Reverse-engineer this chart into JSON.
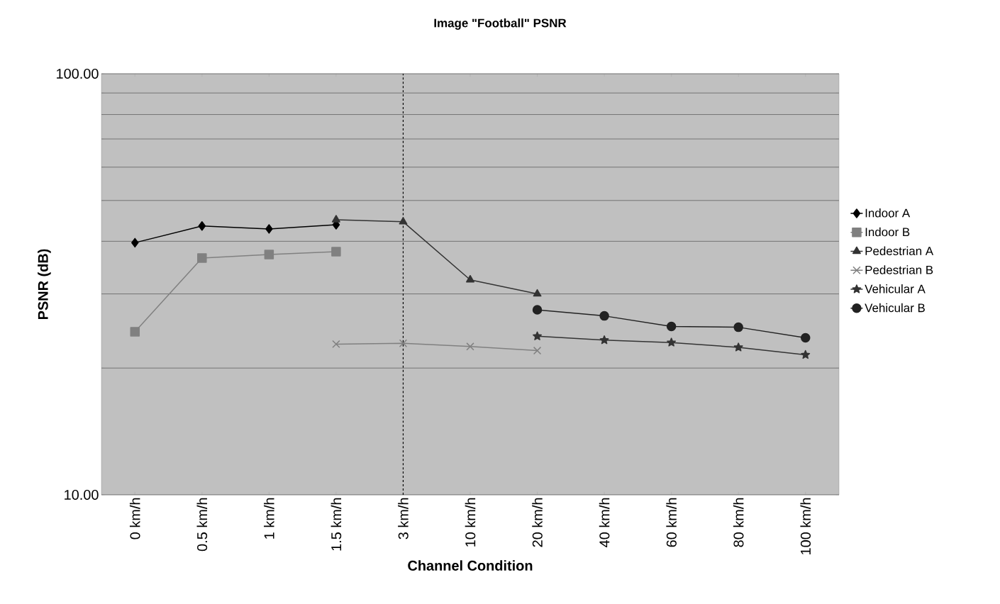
{
  "chart_data": {
    "type": "line",
    "title": "Image \"Football\" PSNR",
    "xlabel": "Channel Condition",
    "ylabel": "PSNR (dB)",
    "categories": [
      "0 km/h",
      "0.5 km/h",
      "1 km/h",
      "1.5 km/h",
      "3 km/h",
      "10 km/h",
      "20 km/h",
      "40 km/h",
      "60 km/h",
      "80 km/h",
      "100 km/h"
    ],
    "series": [
      {
        "name": "Indoor A",
        "color": "#000000",
        "marker": "diamond",
        "values": [
          39.7,
          43.5,
          42.8,
          43.8,
          null,
          null,
          null,
          null,
          null,
          null,
          null
        ]
      },
      {
        "name": "Indoor B",
        "color": "#808080",
        "marker": "square",
        "values": [
          24.4,
          36.5,
          37.2,
          37.8,
          null,
          null,
          null,
          null,
          null,
          null,
          null
        ]
      },
      {
        "name": "Pedestrian A",
        "color": "#333333",
        "marker": "triangle",
        "values": [
          null,
          null,
          null,
          45.0,
          44.5,
          32.4,
          30.0,
          null,
          null,
          null,
          null
        ]
      },
      {
        "name": "Pedestrian B",
        "color": "#808080",
        "marker": "cross",
        "values": [
          null,
          null,
          null,
          22.8,
          22.9,
          22.5,
          22.0,
          null,
          null,
          null,
          null
        ]
      },
      {
        "name": "Vehicular A",
        "color": "#333333",
        "marker": "star",
        "values": [
          null,
          null,
          null,
          null,
          null,
          null,
          23.8,
          23.3,
          23.0,
          22.4,
          21.5
        ]
      },
      {
        "name": "Vehicular B",
        "color": "#222222",
        "marker": "circle",
        "values": [
          null,
          null,
          null,
          null,
          null,
          null,
          27.5,
          26.6,
          25.1,
          25.0,
          23.6
        ]
      }
    ],
    "log": "y",
    "ylim": [
      10,
      100
    ],
    "yticks": [
      {
        "value": 10,
        "label": "10.00"
      },
      {
        "value": 20,
        "label": null
      },
      {
        "value": 30,
        "label": null
      },
      {
        "value": 40,
        "label": null
      },
      {
        "value": 50,
        "label": null
      },
      {
        "value": 60,
        "label": null
      },
      {
        "value": 70,
        "label": null
      },
      {
        "value": 80,
        "label": null
      },
      {
        "value": 90,
        "label": null
      },
      {
        "value": 100,
        "label": "100.00"
      }
    ],
    "grid": "y",
    "legend": "right",
    "line_style": "solid",
    "ref_lines": [
      {
        "axis": "x",
        "value": "3 km/h",
        "line_style": "dashed",
        "color": "#000000"
      }
    ]
  }
}
